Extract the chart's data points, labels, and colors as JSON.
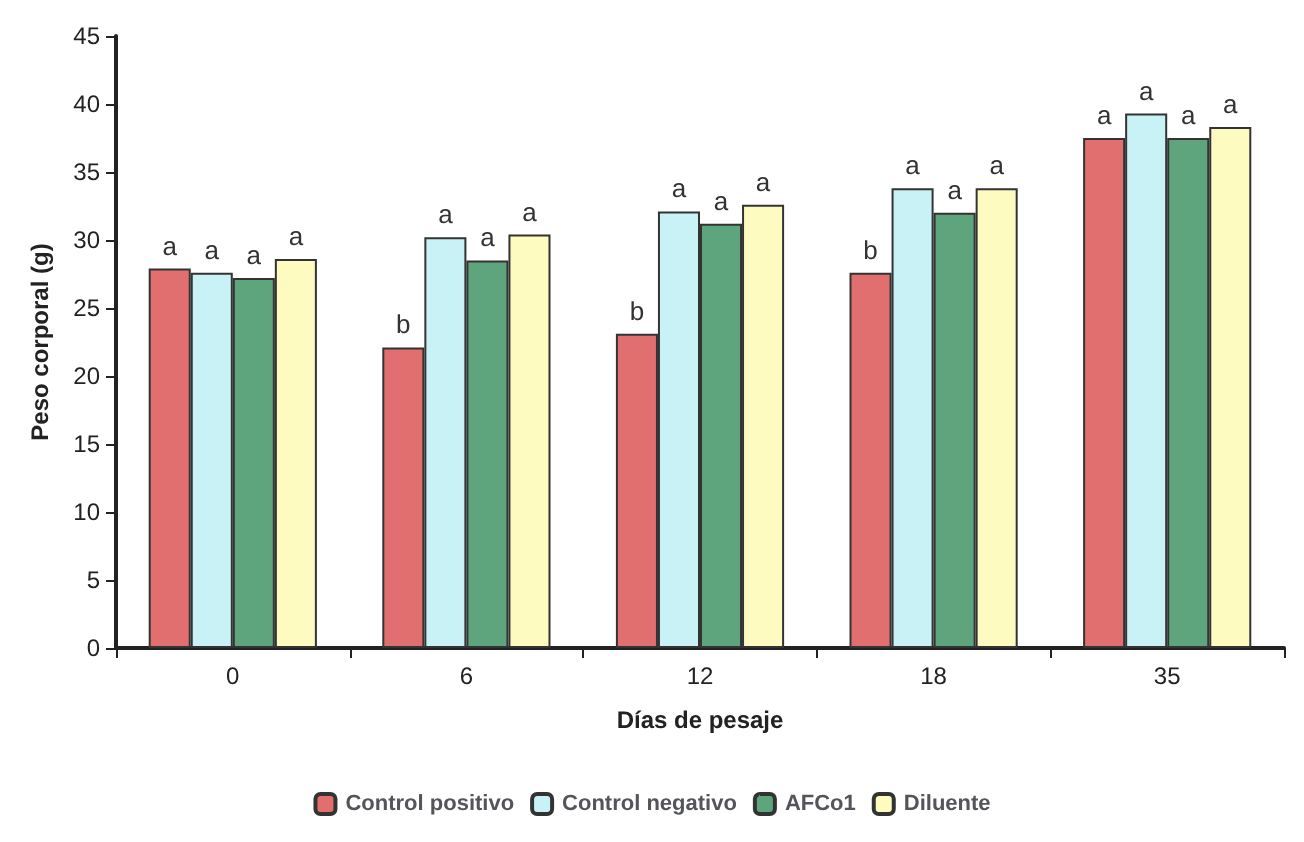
{
  "chart_data": {
    "type": "bar",
    "xlabel": "Días de pesaje",
    "ylabel": "Peso corporal (g)",
    "categories": [
      "0",
      "6",
      "12",
      "18",
      "35"
    ],
    "series": [
      {
        "name": "Control positivo",
        "color": "#e26f6f",
        "values": [
          27.9,
          22.1,
          23.1,
          27.6,
          37.5
        ],
        "value_labels": [
          "a",
          "b",
          "b",
          "b",
          "a"
        ]
      },
      {
        "name": "Control negativo",
        "color": "#c8f2f6",
        "values": [
          27.6,
          30.2,
          32.1,
          33.8,
          39.3
        ],
        "value_labels": [
          "a",
          "a",
          "a",
          "a",
          "a"
        ]
      },
      {
        "name": "AFCo1",
        "color": "#5ea47c",
        "values": [
          27.2,
          28.5,
          31.2,
          32.0,
          37.5
        ],
        "value_labels": [
          "a",
          "a",
          "a",
          "a",
          "a"
        ]
      },
      {
        "name": "Diluente",
        "color": "#fdfbc0",
        "values": [
          28.6,
          30.4,
          32.6,
          33.8,
          38.3
        ],
        "value_labels": [
          "a",
          "a",
          "a",
          "a",
          "a"
        ]
      }
    ],
    "ylim": [
      0,
      45
    ],
    "yticks": [
      0,
      5,
      10,
      15,
      20,
      25,
      30,
      35,
      40,
      45
    ],
    "grid": false,
    "legend": "bottom"
  }
}
